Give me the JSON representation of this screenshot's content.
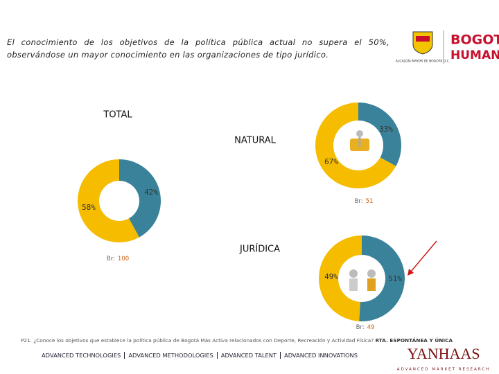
{
  "header": {
    "text": "El conocimiento de los objetivos de la política pública actual no supera el 50%, observándose un mayor conocimiento en las organizaciones de tipo jurídico.",
    "logo_alcaldia": "ALCALDÍA MAYOR DE BOGOTÁ D.C.",
    "logo_bogota": "BOGOTÁ",
    "logo_humana": "HUMANA"
  },
  "chart_data": [
    {
      "type": "donut",
      "title": "TOTAL",
      "values": [
        42,
        58
      ],
      "value_labels": [
        "42%",
        "58%"
      ],
      "colors": [
        "#3a8299",
        "#f5bc00"
      ],
      "base_label": "Br:",
      "base": 100
    },
    {
      "type": "donut",
      "title": "NATURAL",
      "values": [
        33,
        67
      ],
      "value_labels": [
        "33%",
        "67%"
      ],
      "colors": [
        "#3a8299",
        "#f5bc00"
      ],
      "base_label": "Br:",
      "base": 51
    },
    {
      "type": "donut",
      "title": "JURÍDICA",
      "values": [
        51,
        49
      ],
      "value_labels": [
        "51%",
        "49%"
      ],
      "colors": [
        "#3a8299",
        "#f5bc00"
      ],
      "base_label": "Br:",
      "base": 49
    }
  ],
  "footnote": {
    "question": "P21. ¿Conoce los objetivos que establece la política pública de Bogotá Más Activa relacionados con Deporte, Recreación y Actividad Física?",
    "answer_type": "RTA. ESPONTÁNEA Y ÚNICA"
  },
  "footer": {
    "items": [
      "ADVANCED TECHNOLOGIES",
      "ADVANCED METHODOLOGIES",
      "ADVANCED TALENT",
      "ADVANCED INNOVATIONS"
    ],
    "brand": "YANHAAS",
    "brand_tagline": "ADVANCED MARKET RESEARCH"
  }
}
